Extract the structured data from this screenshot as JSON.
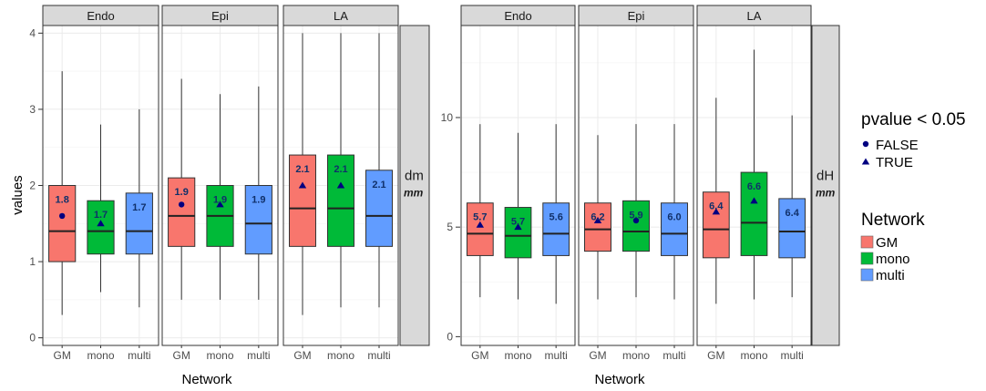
{
  "colors": {
    "GM": "#f8766d",
    "mono": "#00ba38",
    "multi": "#619cff",
    "marker": "#000080",
    "strip": "#d9d9d9"
  },
  "legend": {
    "pvalue_title": "pvalue < 0.05",
    "pvalue_items": [
      {
        "label": "FALSE",
        "shape": "circle"
      },
      {
        "label": "TRUE",
        "shape": "triangle"
      }
    ],
    "network_title": "Network",
    "network_items": [
      {
        "label": "GM",
        "color": "#f8766d"
      },
      {
        "label": "mono",
        "color": "#00ba38"
      },
      {
        "label": "multi",
        "color": "#619cff"
      }
    ]
  },
  "chart_data": [
    {
      "type": "boxplot",
      "ylabel": "values",
      "xlabel": "Network",
      "ylim": [
        -0.1,
        4.1
      ],
      "yticks": [
        0,
        1,
        2,
        3,
        4
      ],
      "strip_right": "dm",
      "strip_right_sub": "mm",
      "facets": [
        {
          "name": "Endo",
          "boxes": [
            {
              "group": "GM",
              "min": 0.3,
              "q1": 1.0,
              "median": 1.4,
              "q3": 2.0,
              "max": 3.5,
              "mean": 1.6,
              "marker": "circle",
              "label": "1.8"
            },
            {
              "group": "mono",
              "min": 0.6,
              "q1": 1.1,
              "median": 1.4,
              "q3": 1.8,
              "max": 2.8,
              "mean": 1.5,
              "marker": "triangle",
              "label": "1.7"
            },
            {
              "group": "multi",
              "min": 0.4,
              "q1": 1.1,
              "median": 1.4,
              "q3": 1.9,
              "max": 3.0,
              "mean": null,
              "marker": null,
              "label": "1.7"
            }
          ]
        },
        {
          "name": "Epi",
          "boxes": [
            {
              "group": "GM",
              "min": 0.5,
              "q1": 1.2,
              "median": 1.6,
              "q3": 2.1,
              "max": 3.4,
              "mean": 1.75,
              "marker": "circle",
              "label": "1.9"
            },
            {
              "group": "mono",
              "min": 0.5,
              "q1": 1.2,
              "median": 1.6,
              "q3": 2.0,
              "max": 3.2,
              "mean": 1.75,
              "marker": "triangle",
              "label": "1.9"
            },
            {
              "group": "multi",
              "min": 0.5,
              "q1": 1.1,
              "median": 1.5,
              "q3": 2.0,
              "max": 3.3,
              "mean": null,
              "marker": null,
              "label": "1.9"
            }
          ]
        },
        {
          "name": "LA",
          "boxes": [
            {
              "group": "GM",
              "min": 0.3,
              "q1": 1.2,
              "median": 1.7,
              "q3": 2.4,
              "max": 4.0,
              "mean": 2.0,
              "marker": "triangle",
              "label": "2.1"
            },
            {
              "group": "mono",
              "min": 0.4,
              "q1": 1.2,
              "median": 1.7,
              "q3": 2.4,
              "max": 4.0,
              "mean": 2.0,
              "marker": "triangle",
              "label": "2.1"
            },
            {
              "group": "multi",
              "min": 0.4,
              "q1": 1.2,
              "median": 1.6,
              "q3": 2.2,
              "max": 4.0,
              "mean": null,
              "marker": null,
              "label": "2.1"
            }
          ]
        }
      ]
    },
    {
      "type": "boxplot",
      "ylabel": "",
      "xlabel": "Network",
      "ylim": [
        -0.4,
        14.2
      ],
      "yticks": [
        0,
        5,
        10
      ],
      "strip_right": "dH",
      "strip_right_sub": "mm",
      "facets": [
        {
          "name": "Endo",
          "boxes": [
            {
              "group": "GM",
              "min": 1.8,
              "q1": 3.7,
              "median": 4.7,
              "q3": 6.1,
              "max": 9.7,
              "mean": 5.1,
              "marker": "triangle",
              "label": "5.7"
            },
            {
              "group": "mono",
              "min": 1.7,
              "q1": 3.6,
              "median": 4.6,
              "q3": 5.9,
              "max": 9.3,
              "mean": 5.0,
              "marker": "triangle",
              "label": "5.7"
            },
            {
              "group": "multi",
              "min": 1.5,
              "q1": 3.7,
              "median": 4.7,
              "q3": 6.1,
              "max": 9.7,
              "mean": null,
              "marker": null,
              "label": "5.6"
            }
          ]
        },
        {
          "name": "Epi",
          "boxes": [
            {
              "group": "GM",
              "min": 1.7,
              "q1": 3.9,
              "median": 4.9,
              "q3": 6.1,
              "max": 9.2,
              "mean": 5.3,
              "marker": "triangle",
              "label": "6.2"
            },
            {
              "group": "mono",
              "min": 1.8,
              "q1": 3.9,
              "median": 4.8,
              "q3": 6.2,
              "max": 9.7,
              "mean": 5.3,
              "marker": "circle",
              "label": "5.9"
            },
            {
              "group": "multi",
              "min": 1.7,
              "q1": 3.7,
              "median": 4.7,
              "q3": 6.1,
              "max": 9.7,
              "mean": null,
              "marker": null,
              "label": "6.0"
            }
          ]
        },
        {
          "name": "LA",
          "boxes": [
            {
              "group": "GM",
              "min": 1.5,
              "q1": 3.6,
              "median": 4.9,
              "q3": 6.6,
              "max": 10.9,
              "mean": 5.7,
              "marker": "triangle",
              "label": "6.4"
            },
            {
              "group": "mono",
              "min": 1.7,
              "q1": 3.7,
              "median": 5.2,
              "q3": 7.5,
              "max": 13.1,
              "mean": 6.2,
              "marker": "triangle",
              "label": "6.6"
            },
            {
              "group": "multi",
              "min": 1.8,
              "q1": 3.6,
              "median": 4.8,
              "q3": 6.3,
              "max": 10.1,
              "mean": null,
              "marker": null,
              "label": "6.4"
            }
          ]
        }
      ]
    }
  ]
}
